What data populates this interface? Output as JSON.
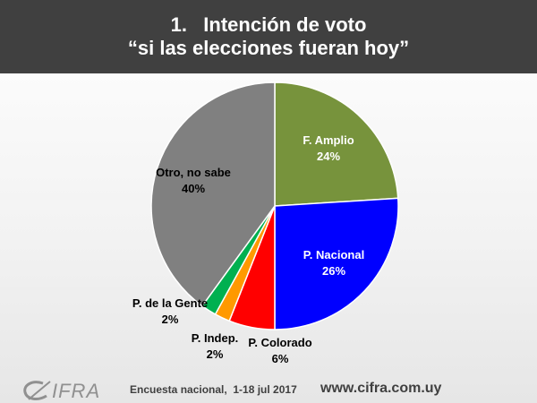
{
  "header": {
    "title_line1": "1.   Intención de voto",
    "title_line2": "“si las elecciones fueran hoy”"
  },
  "chart_data": {
    "type": "pie",
    "title": "1.   Intención de voto “si las elecciones fueran hoy”",
    "slices": [
      {
        "label": "F. Amplio",
        "value": 24,
        "value_label": "24%",
        "color": "#77933c",
        "label_color": "#ffffff"
      },
      {
        "label": "P. Nacional",
        "value": 26,
        "value_label": "26%",
        "color": "#0000ff",
        "label_color": "#ffffff"
      },
      {
        "label": "P. Colorado",
        "value": 6,
        "value_label": "6%",
        "color": "#ff0000",
        "label_color": "#000000"
      },
      {
        "label": "P. Indep.",
        "value": 2,
        "value_label": "2%",
        "color": "#ff9900",
        "label_color": "#000000"
      },
      {
        "label": "P. de la Gente",
        "value": 2,
        "value_label": "2%",
        "color": "#00b050",
        "label_color": "#000000"
      },
      {
        "label": "Otro, no sabe",
        "value": 40,
        "value_label": "40%",
        "color": "#808080",
        "label_color": "#000000"
      }
    ]
  },
  "footer": {
    "logo_text": "IFRA",
    "survey": "Encuesta nacional,  1-18 jul 2017",
    "website": "www.cifra.com.uy"
  }
}
